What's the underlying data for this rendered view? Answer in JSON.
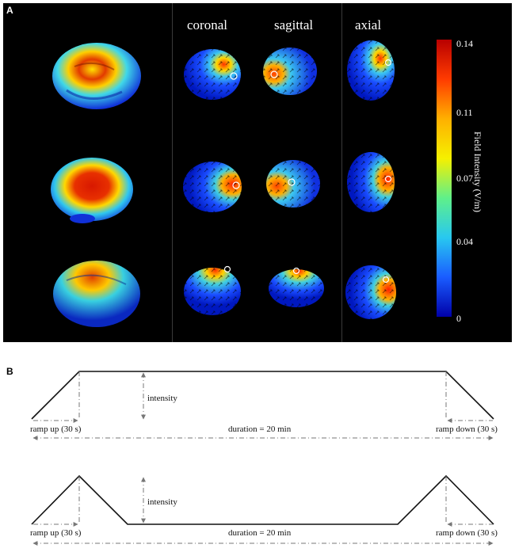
{
  "panel_a": {
    "label": "A",
    "columns": [
      "coronal",
      "sagittal",
      "axial"
    ],
    "colorbar": {
      "title": "Field Intensity (V/m)",
      "ticks": [
        "0.14",
        "0.11",
        "0.07",
        "0.04",
        "0"
      ],
      "colors": [
        "#b80000",
        "#ff3b00",
        "#ffb000",
        "#f5f000",
        "#5ff08a",
        "#28c8f0",
        "#1a5cff",
        "#0000a8"
      ]
    }
  },
  "panel_b": {
    "label": "B",
    "protocols": [
      {
        "intensity_label": "intensity",
        "ramp_up_label": "ramp up (30 s)",
        "ramp_down_label": "ramp down (30 s)",
        "duration_label": "duration = 20 min"
      },
      {
        "intensity_label": "intensity",
        "ramp_up_label": "ramp up (30 s)",
        "ramp_down_label": "ramp down (30 s)",
        "duration_label": "duration = 20 min"
      }
    ]
  }
}
